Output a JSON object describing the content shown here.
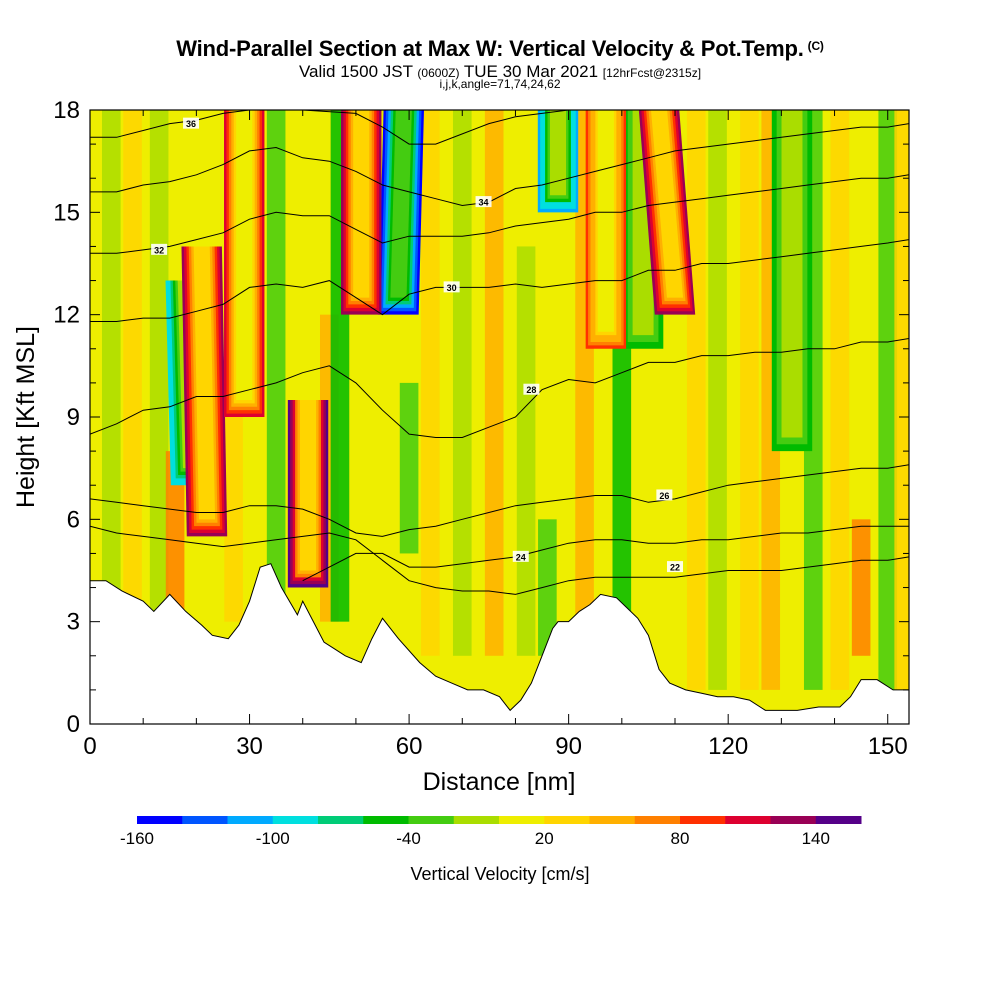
{
  "header": {
    "title_main": "Wind-Parallel Section at Max W: Vertical Velocity & Pot.Temp.",
    "title_suffix": "(C)",
    "valid_prefix": "Valid 1500 JST",
    "valid_zulu": "(0600Z)",
    "valid_date": "TUE 30 Mar 2021",
    "forecast_info": "[12hrFcst@2315z]",
    "section_params": "i,j,k,angle=71,74,24,62"
  },
  "chart_data": {
    "type": "heatmap",
    "xlabel": "Distance [nm]",
    "ylabel": "Height [Kft MSL]",
    "xlim": [
      0,
      154
    ],
    "ylim": [
      0,
      18
    ],
    "x_ticks": [
      0,
      30,
      60,
      90,
      120,
      150
    ],
    "y_ticks": [
      0,
      3,
      6,
      9,
      12,
      15,
      18
    ],
    "colorbar": {
      "title": "Vertical Velocity [cm/s]",
      "tick_labels": [
        "-160",
        "-100",
        "-40",
        "20",
        "80",
        "140"
      ],
      "tick_values": [
        -160,
        -100,
        -40,
        20,
        80,
        140
      ],
      "colors": [
        "#0000ff",
        "#0055ff",
        "#00aaff",
        "#00dfdf",
        "#00cc77",
        "#00bb00",
        "#44cc11",
        "#aadd00",
        "#eeee00",
        "#ffd500",
        "#ffb000",
        "#ff8000",
        "#ff3000",
        "#dd0030",
        "#990055",
        "#550088"
      ]
    },
    "updraft_bands": [
      {
        "x": 22,
        "x_top": 21,
        "y_bottom": 5.5,
        "y_top": 14,
        "peak": 120
      },
      {
        "x": 29,
        "x_top": 29,
        "y_bottom": 9,
        "y_top": 18,
        "peak": 110
      },
      {
        "x": 41,
        "x_top": 41,
        "y_bottom": 4,
        "y_top": 9.5,
        "peak": 150
      },
      {
        "x": 51,
        "x_top": 51,
        "y_bottom": 12,
        "y_top": 18,
        "peak": 130
      },
      {
        "x": 110,
        "x_top": 107,
        "y_bottom": 12,
        "y_top": 18,
        "peak": 120
      },
      {
        "x": 97,
        "x_top": 97,
        "y_bottom": 11,
        "y_top": 18,
        "peak": 80
      }
    ],
    "downdraft_bands": [
      {
        "x": 19,
        "x_top": 18,
        "y_bottom": 7,
        "y_top": 13,
        "peak": -100
      },
      {
        "x": 58,
        "x_top": 59,
        "y_bottom": 12,
        "y_top": 18,
        "peak": -160
      },
      {
        "x": 88,
        "x_top": 88,
        "y_bottom": 15,
        "y_top": 18,
        "peak": -120
      },
      {
        "x": 104,
        "x_top": 104,
        "y_bottom": 11,
        "y_top": 18,
        "peak": -60
      },
      {
        "x": 132,
        "x_top": 132,
        "y_bottom": 8,
        "y_top": 18,
        "peak": -50
      }
    ],
    "terrain_kft": [
      [
        0,
        4.2
      ],
      [
        3,
        4.2
      ],
      [
        6,
        3.9
      ],
      [
        10,
        3.6
      ],
      [
        12,
        3.3
      ],
      [
        15,
        3.8
      ],
      [
        18,
        3.3
      ],
      [
        21,
        2.9
      ],
      [
        23,
        2.6
      ],
      [
        26,
        2.5
      ],
      [
        28,
        2.9
      ],
      [
        30,
        3.6
      ],
      [
        32,
        4.6
      ],
      [
        34,
        4.7
      ],
      [
        36,
        4.0
      ],
      [
        39,
        3.2
      ],
      [
        40,
        3.6
      ],
      [
        42,
        3.0
      ],
      [
        44,
        2.4
      ],
      [
        46,
        2.2
      ],
      [
        48,
        2.0
      ],
      [
        51,
        1.8
      ],
      [
        53,
        2.5
      ],
      [
        55,
        3.1
      ],
      [
        58,
        2.5
      ],
      [
        62,
        1.8
      ],
      [
        65,
        1.4
      ],
      [
        68,
        1.2
      ],
      [
        71,
        1.0
      ],
      [
        74,
        1.0
      ],
      [
        77,
        0.8
      ],
      [
        79,
        0.4
      ],
      [
        81,
        0.7
      ],
      [
        83,
        1.2
      ],
      [
        85,
        2.0
      ],
      [
        87,
        2.8
      ],
      [
        88,
        3.0
      ],
      [
        90,
        3.0
      ],
      [
        92,
        3.3
      ],
      [
        94,
        3.5
      ],
      [
        96,
        3.8
      ],
      [
        99,
        3.7
      ],
      [
        101,
        3.4
      ],
      [
        103,
        3.1
      ],
      [
        105,
        2.6
      ],
      [
        107,
        1.6
      ],
      [
        109,
        1.2
      ],
      [
        112,
        1.0
      ],
      [
        115,
        0.9
      ],
      [
        118,
        0.8
      ],
      [
        121,
        0.8
      ],
      [
        124,
        0.7
      ],
      [
        127,
        0.4
      ],
      [
        133,
        0.4
      ],
      [
        137,
        0.5
      ],
      [
        141,
        0.5
      ],
      [
        143,
        0.8
      ],
      [
        145,
        1.3
      ],
      [
        148,
        1.3
      ],
      [
        151,
        1.0
      ],
      [
        154,
        1.0
      ]
    ],
    "theta_contours": [
      {
        "label": "22",
        "points": [
          [
            0,
            5.8
          ],
          [
            5,
            5.6
          ],
          [
            10,
            5.5
          ],
          [
            15,
            5.4
          ],
          [
            20,
            5.3
          ],
          [
            25,
            5.2
          ],
          [
            30,
            5.3
          ],
          [
            35,
            5.4
          ],
          [
            40,
            5.5
          ],
          [
            45,
            5.6
          ],
          [
            50,
            5.4
          ],
          [
            55,
            4.8
          ],
          [
            60,
            4.2
          ],
          [
            65,
            4.0
          ],
          [
            70,
            3.9
          ],
          [
            75,
            3.9
          ],
          [
            80,
            3.8
          ],
          [
            85,
            4.0
          ],
          [
            90,
            4.2
          ],
          [
            95,
            4.3
          ],
          [
            100,
            4.3
          ],
          [
            105,
            4.3
          ],
          [
            110,
            4.3
          ],
          [
            115,
            4.4
          ],
          [
            120,
            4.5
          ],
          [
            125,
            4.5
          ],
          [
            130,
            4.5
          ],
          [
            135,
            4.6
          ],
          [
            140,
            4.7
          ],
          [
            145,
            4.8
          ],
          [
            150,
            4.8
          ],
          [
            154,
            4.9
          ]
        ],
        "label_pos": [
          110,
          4.6
        ]
      },
      {
        "label": "24",
        "points": [
          [
            40,
            4.2
          ],
          [
            45,
            4.6
          ],
          [
            50,
            5.0
          ],
          [
            55,
            5.0
          ],
          [
            60,
            4.6
          ],
          [
            65,
            4.6
          ],
          [
            70,
            4.7
          ],
          [
            75,
            4.8
          ],
          [
            80,
            4.9
          ],
          [
            85,
            5.1
          ],
          [
            90,
            5.3
          ],
          [
            95,
            5.4
          ],
          [
            100,
            5.4
          ],
          [
            105,
            5.3
          ],
          [
            110,
            5.3
          ],
          [
            115,
            5.4
          ],
          [
            120,
            5.4
          ],
          [
            125,
            5.5
          ],
          [
            130,
            5.6
          ],
          [
            135,
            5.6
          ],
          [
            140,
            5.7
          ],
          [
            145,
            5.8
          ],
          [
            150,
            5.8
          ],
          [
            154,
            5.8
          ]
        ],
        "label_pos": [
          81,
          4.9
        ]
      },
      {
        "label": "26",
        "points": [
          [
            0,
            6.6
          ],
          [
            5,
            6.5
          ],
          [
            10,
            6.4
          ],
          [
            15,
            6.3
          ],
          [
            20,
            6.2
          ],
          [
            25,
            6.2
          ],
          [
            30,
            6.4
          ],
          [
            35,
            6.4
          ],
          [
            40,
            6.3
          ],
          [
            45,
            6.0
          ],
          [
            50,
            5.6
          ],
          [
            55,
            5.5
          ],
          [
            60,
            5.7
          ],
          [
            65,
            5.8
          ],
          [
            70,
            6.0
          ],
          [
            75,
            6.2
          ],
          [
            80,
            6.4
          ],
          [
            85,
            6.5
          ],
          [
            90,
            6.6
          ],
          [
            95,
            6.7
          ],
          [
            100,
            6.7
          ],
          [
            105,
            6.5
          ],
          [
            110,
            6.6
          ],
          [
            115,
            6.8
          ],
          [
            120,
            7.0
          ],
          [
            125,
            7.1
          ],
          [
            130,
            7.2
          ],
          [
            135,
            7.3
          ],
          [
            140,
            7.4
          ],
          [
            145,
            7.5
          ],
          [
            150,
            7.5
          ],
          [
            154,
            7.6
          ]
        ],
        "label_pos": [
          108,
          6.7
        ]
      },
      {
        "label": "28",
        "points": [
          [
            0,
            8.5
          ],
          [
            5,
            8.8
          ],
          [
            10,
            9.2
          ],
          [
            15,
            9.3
          ],
          [
            20,
            9.6
          ],
          [
            25,
            9.6
          ],
          [
            30,
            9.8
          ],
          [
            35,
            10.0
          ],
          [
            40,
            10.3
          ],
          [
            45,
            10.5
          ],
          [
            50,
            10.0
          ],
          [
            55,
            9.2
          ],
          [
            60,
            8.5
          ],
          [
            65,
            8.4
          ],
          [
            70,
            8.4
          ],
          [
            75,
            8.7
          ],
          [
            80,
            9.0
          ],
          [
            85,
            9.8
          ],
          [
            90,
            10.1
          ],
          [
            95,
            10.0
          ],
          [
            100,
            10.3
          ],
          [
            105,
            10.6
          ],
          [
            110,
            10.6
          ],
          [
            115,
            10.8
          ],
          [
            120,
            10.8
          ],
          [
            125,
            10.9
          ],
          [
            130,
            10.9
          ],
          [
            135,
            11.0
          ],
          [
            140,
            11.0
          ],
          [
            145,
            11.2
          ],
          [
            150,
            11.2
          ],
          [
            154,
            11.3
          ]
        ],
        "label_pos": [
          83,
          9.8
        ]
      },
      {
        "label": "30",
        "points": [
          [
            0,
            11.8
          ],
          [
            5,
            11.8
          ],
          [
            10,
            11.9
          ],
          [
            15,
            11.9
          ],
          [
            20,
            12.1
          ],
          [
            25,
            12.3
          ],
          [
            30,
            12.8
          ],
          [
            35,
            12.9
          ],
          [
            40,
            12.8
          ],
          [
            45,
            13.0
          ],
          [
            50,
            12.5
          ],
          [
            55,
            12.0
          ],
          [
            60,
            12.6
          ],
          [
            65,
            12.8
          ],
          [
            70,
            12.8
          ],
          [
            75,
            12.8
          ],
          [
            80,
            12.9
          ],
          [
            85,
            12.8
          ],
          [
            90,
            12.9
          ],
          [
            95,
            13.0
          ],
          [
            100,
            13.0
          ],
          [
            105,
            13.3
          ],
          [
            110,
            13.3
          ],
          [
            115,
            13.5
          ],
          [
            120,
            13.5
          ],
          [
            125,
            13.6
          ],
          [
            130,
            13.7
          ],
          [
            135,
            13.8
          ],
          [
            140,
            13.9
          ],
          [
            145,
            14.0
          ],
          [
            150,
            14.1
          ],
          [
            154,
            14.2
          ]
        ],
        "label_pos": [
          68,
          12.8
        ]
      },
      {
        "label": "32",
        "points": [
          [
            0,
            13.8
          ],
          [
            5,
            13.8
          ],
          [
            10,
            13.9
          ],
          [
            15,
            14.0
          ],
          [
            20,
            14.2
          ],
          [
            25,
            14.4
          ],
          [
            30,
            14.8
          ],
          [
            35,
            15.0
          ],
          [
            40,
            14.9
          ],
          [
            45,
            14.9
          ],
          [
            50,
            14.5
          ],
          [
            55,
            14.1
          ],
          [
            60,
            14.3
          ],
          [
            65,
            14.3
          ],
          [
            70,
            14.3
          ],
          [
            75,
            14.4
          ],
          [
            80,
            14.6
          ],
          [
            85,
            14.7
          ],
          [
            90,
            14.8
          ],
          [
            95,
            15.0
          ],
          [
            100,
            15.0
          ],
          [
            105,
            15.2
          ],
          [
            110,
            15.3
          ],
          [
            115,
            15.4
          ],
          [
            120,
            15.5
          ],
          [
            125,
            15.6
          ],
          [
            130,
            15.7
          ],
          [
            135,
            15.8
          ],
          [
            140,
            15.9
          ],
          [
            145,
            16.0
          ],
          [
            150,
            16.0
          ],
          [
            154,
            16.1
          ]
        ],
        "label_pos": [
          13,
          13.9
        ]
      },
      {
        "label": "34",
        "points": [
          [
            0,
            15.6
          ],
          [
            5,
            15.6
          ],
          [
            10,
            15.8
          ],
          [
            15,
            15.9
          ],
          [
            20,
            16.1
          ],
          [
            25,
            16.4
          ],
          [
            30,
            16.8
          ],
          [
            35,
            16.9
          ],
          [
            40,
            16.6
          ],
          [
            45,
            16.5
          ],
          [
            50,
            16.2
          ],
          [
            55,
            15.8
          ],
          [
            60,
            15.6
          ],
          [
            65,
            15.4
          ],
          [
            70,
            15.2
          ],
          [
            75,
            15.3
          ],
          [
            80,
            15.7
          ],
          [
            85,
            15.8
          ],
          [
            90,
            16.0
          ],
          [
            95,
            16.2
          ],
          [
            100,
            16.4
          ],
          [
            105,
            16.6
          ],
          [
            110,
            16.8
          ],
          [
            115,
            16.9
          ],
          [
            120,
            17.0
          ],
          [
            125,
            17.1
          ],
          [
            130,
            17.2
          ],
          [
            135,
            17.3
          ],
          [
            140,
            17.4
          ],
          [
            145,
            17.5
          ],
          [
            150,
            17.5
          ],
          [
            154,
            17.6
          ]
        ],
        "label_pos": [
          74,
          15.3
        ]
      },
      {
        "label": "36",
        "points": [
          [
            0,
            17.2
          ],
          [
            5,
            17.2
          ],
          [
            10,
            17.4
          ],
          [
            15,
            17.6
          ],
          [
            20,
            17.7
          ],
          [
            25,
            17.9
          ],
          [
            30,
            18.0
          ],
          [
            40,
            18.0
          ],
          [
            50,
            17.9
          ],
          [
            55,
            17.5
          ],
          [
            60,
            17.0
          ],
          [
            65,
            17.0
          ],
          [
            70,
            17.3
          ],
          [
            75,
            17.6
          ],
          [
            80,
            17.8
          ],
          [
            85,
            17.9
          ],
          [
            90,
            18.0
          ],
          [
            154,
            18.0
          ]
        ],
        "label_pos": [
          19,
          17.6
        ]
      }
    ]
  }
}
